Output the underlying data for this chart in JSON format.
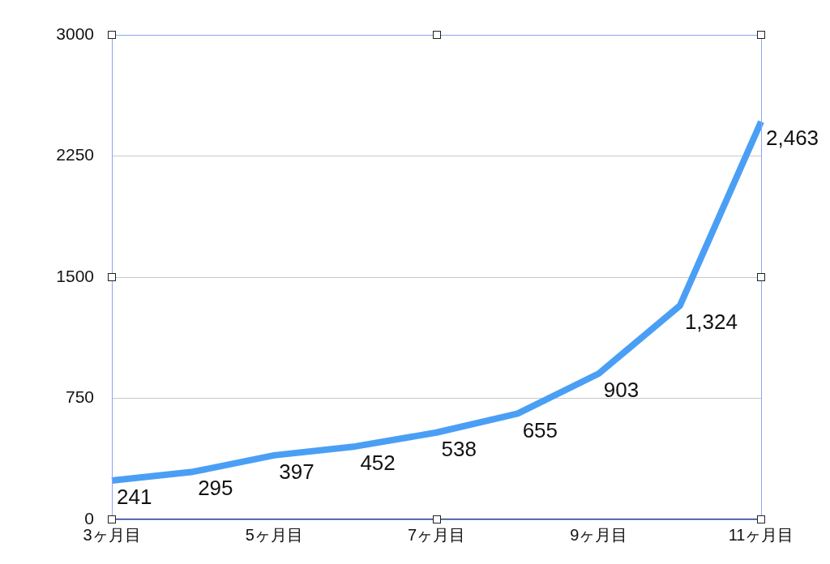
{
  "chart_data": {
    "type": "line",
    "categories": [
      "3ヶ月目",
      null,
      "5ヶ月目",
      null,
      "7ヶ月目",
      null,
      "9ヶ月目",
      null,
      "11ヶ月目"
    ],
    "series": [
      {
        "color": "#4a9ff5",
        "values": [
          241,
          295,
          397,
          452,
          538,
          655,
          903,
          1324,
          2463
        ],
        "value_labels": [
          "241",
          "295",
          "397",
          "452",
          "538",
          "655",
          "903",
          "1,324",
          "2,463"
        ]
      }
    ],
    "ylim": [
      0,
      3000
    ],
    "yticks": [
      0,
      750,
      1500,
      2250,
      3000
    ],
    "grid": "y",
    "marker": "none"
  }
}
